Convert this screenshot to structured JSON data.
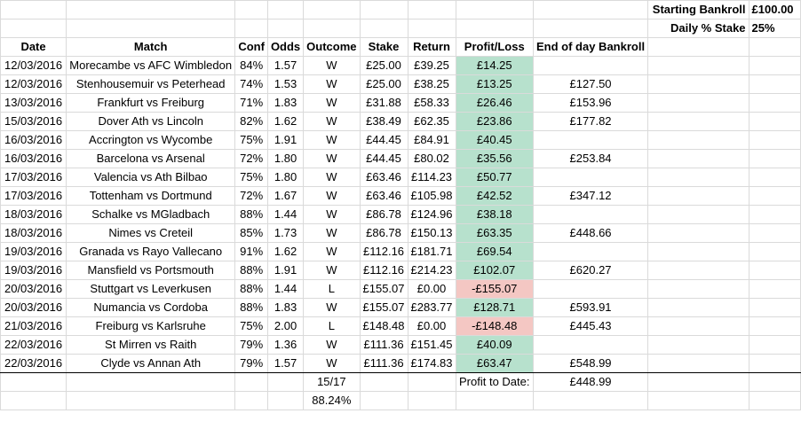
{
  "settings": {
    "bankroll_label": "Starting Bankroll",
    "bankroll_value": "£100.00",
    "stake_label": "Daily % Stake",
    "stake_value": "25%"
  },
  "headers": {
    "date": "Date",
    "match": "Match",
    "conf": "Conf",
    "odds": "Odds",
    "outcome": "Outcome",
    "stake": "Stake",
    "return": "Return",
    "profit": "Profit/Loss",
    "eod": "End of day Bankroll"
  },
  "rows": [
    {
      "date": "12/03/2016",
      "match": "Morecambe vs AFC Wimbledon",
      "conf": "84%",
      "odds": "1.57",
      "outcome": "W",
      "stake": "£25.00",
      "ret": "£39.25",
      "profit": "£14.25",
      "eod": "",
      "status": "pos"
    },
    {
      "date": "12/03/2016",
      "match": "Stenhousemuir vs Peterhead",
      "conf": "74%",
      "odds": "1.53",
      "outcome": "W",
      "stake": "£25.00",
      "ret": "£38.25",
      "profit": "£13.25",
      "eod": "£127.50",
      "status": "pos"
    },
    {
      "date": "13/03/2016",
      "match": "Frankfurt vs Freiburg",
      "conf": "71%",
      "odds": "1.83",
      "outcome": "W",
      "stake": "£31.88",
      "ret": "£58.33",
      "profit": "£26.46",
      "eod": "£153.96",
      "status": "pos"
    },
    {
      "date": "15/03/2016",
      "match": "Dover Ath vs Lincoln",
      "conf": "82%",
      "odds": "1.62",
      "outcome": "W",
      "stake": "£38.49",
      "ret": "£62.35",
      "profit": "£23.86",
      "eod": "£177.82",
      "status": "pos"
    },
    {
      "date": "16/03/2016",
      "match": "Accrington vs Wycombe",
      "conf": "75%",
      "odds": "1.91",
      "outcome": "W",
      "stake": "£44.45",
      "ret": "£84.91",
      "profit": "£40.45",
      "eod": "",
      "status": "pos"
    },
    {
      "date": "16/03/2016",
      "match": "Barcelona vs Arsenal",
      "conf": "72%",
      "odds": "1.80",
      "outcome": "W",
      "stake": "£44.45",
      "ret": "£80.02",
      "profit": "£35.56",
      "eod": "£253.84",
      "status": "pos"
    },
    {
      "date": "17/03/2016",
      "match": "Valencia vs Ath Bilbao",
      "conf": "75%",
      "odds": "1.80",
      "outcome": "W",
      "stake": "£63.46",
      "ret": "£114.23",
      "profit": "£50.77",
      "eod": "",
      "status": "pos"
    },
    {
      "date": "17/03/2016",
      "match": "Tottenham vs Dortmund",
      "conf": "72%",
      "odds": "1.67",
      "outcome": "W",
      "stake": "£63.46",
      "ret": "£105.98",
      "profit": "£42.52",
      "eod": "£347.12",
      "status": "pos"
    },
    {
      "date": "18/03/2016",
      "match": "Schalke vs MGladbach",
      "conf": "88%",
      "odds": "1.44",
      "outcome": "W",
      "stake": "£86.78",
      "ret": "£124.96",
      "profit": "£38.18",
      "eod": "",
      "status": "pos"
    },
    {
      "date": "18/03/2016",
      "match": "Nimes vs Creteil",
      "conf": "85%",
      "odds": "1.73",
      "outcome": "W",
      "stake": "£86.78",
      "ret": "£150.13",
      "profit": "£63.35",
      "eod": "£448.66",
      "status": "pos"
    },
    {
      "date": "19/03/2016",
      "match": "Granada vs Rayo Vallecano",
      "conf": "91%",
      "odds": "1.62",
      "outcome": "W",
      "stake": "£112.16",
      "ret": "£181.71",
      "profit": "£69.54",
      "eod": "",
      "status": "pos"
    },
    {
      "date": "19/03/2016",
      "match": "Mansfield vs Portsmouth",
      "conf": "88%",
      "odds": "1.91",
      "outcome": "W",
      "stake": "£112.16",
      "ret": "£214.23",
      "profit": "£102.07",
      "eod": "£620.27",
      "status": "pos"
    },
    {
      "date": "20/03/2016",
      "match": "Stuttgart vs Leverkusen",
      "conf": "88%",
      "odds": "1.44",
      "outcome": "L",
      "stake": "£155.07",
      "ret": "£0.00",
      "profit": "-£155.07",
      "eod": "",
      "status": "neg"
    },
    {
      "date": "20/03/2016",
      "match": "Numancia vs Cordoba",
      "conf": "88%",
      "odds": "1.83",
      "outcome": "W",
      "stake": "£155.07",
      "ret": "£283.77",
      "profit": "£128.71",
      "eod": "£593.91",
      "status": "pos"
    },
    {
      "date": "21/03/2016",
      "match": "Freiburg vs Karlsruhe",
      "conf": "75%",
      "odds": "2.00",
      "outcome": "L",
      "stake": "£148.48",
      "ret": "£0.00",
      "profit": "-£148.48",
      "eod": "£445.43",
      "status": "neg"
    },
    {
      "date": "22/03/2016",
      "match": "St Mirren vs Raith",
      "conf": "79%",
      "odds": "1.36",
      "outcome": "W",
      "stake": "£111.36",
      "ret": "£151.45",
      "profit": "£40.09",
      "eod": "",
      "status": "pos"
    },
    {
      "date": "22/03/2016",
      "match": "Clyde vs Annan Ath",
      "conf": "79%",
      "odds": "1.57",
      "outcome": "W",
      "stake": "£111.36",
      "ret": "£174.83",
      "profit": "£63.47",
      "eod": "£548.99",
      "status": "pos"
    }
  ],
  "summary": {
    "wins": "15/17",
    "win_rate": "88.24%",
    "profit_label": "Profit to Date:",
    "profit_value": "£448.99"
  },
  "colors": {
    "profit_positive": "#b7e1cd",
    "profit_negative": "#f4c7c3",
    "gridline": "#dadada"
  }
}
